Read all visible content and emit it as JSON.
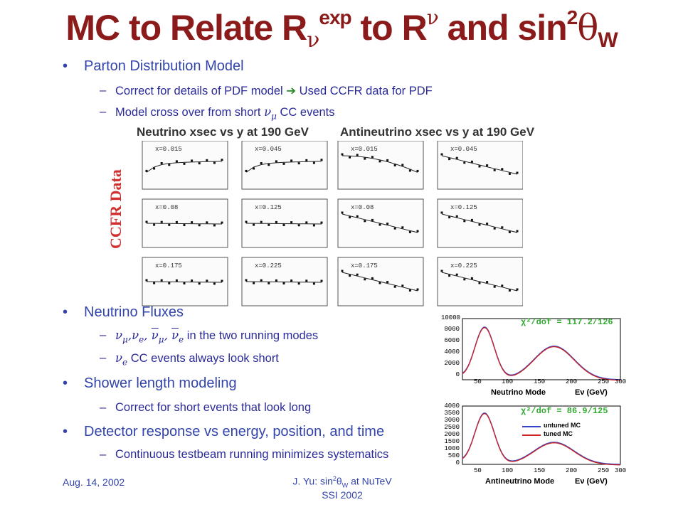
{
  "title": {
    "part1": "MC to Relate R",
    "nu1": "ν",
    "exp": "exp",
    "part2": " to R",
    "nu2": "ν",
    "part3": " and sin",
    "sq": "2",
    "theta": "θ",
    "w": "W"
  },
  "bullets": {
    "pdf": {
      "label": "Parton Distribution Model",
      "sub1": "Correct for details of PDF model ",
      "sub1_arrow": "➔",
      "sub1_tail": " Used CCFR data for PDF",
      "sub2": "Model cross over from short ",
      "sub2_nu": "ν",
      "sub2_mu": "μ",
      "sub2_tail": " CC events"
    },
    "flux": {
      "label": "Neutrino Fluxes",
      "sub1_tail": " in the two running modes",
      "sub2_tail": " CC events always look short"
    },
    "shower": {
      "label": "Shower length modeling",
      "sub1": "Correct for short events that look long"
    },
    "detector": {
      "label": "Detector response vs energy, position, and time",
      "sub1": "Continuous testbeam running minimizes systematics"
    }
  },
  "figure_ccfr": {
    "side_label": "CCFR Data",
    "header_left": "Neutrino xsec vs y at 190 GeV",
    "header_right": "Antineutrino xsec vs y at 190 GeV",
    "panels": [
      {
        "label": "x=0.015"
      },
      {
        "label": "x=0.045"
      },
      {
        "label": "x=0.015"
      },
      {
        "label": "x=0.045"
      },
      {
        "label": "x=0.08"
      },
      {
        "label": "x=0.125"
      },
      {
        "label": "x=0.08"
      },
      {
        "label": "x=0.125"
      },
      {
        "label": "x=0.175"
      },
      {
        "label": "x=0.225"
      },
      {
        "label": "x=0.175"
      },
      {
        "label": "x=0.225"
      }
    ]
  },
  "flux_plots": [
    {
      "chi": "χ²/dof = 117.2/126",
      "mode": "Neutrino Mode",
      "elabel": "Eν (GeV)",
      "yticks": [
        "10000",
        "8000",
        "6000",
        "4000",
        "2000",
        "0"
      ],
      "xticks": [
        "50",
        "100",
        "150",
        "200",
        "250",
        "300"
      ],
      "colors": {
        "untuned": "#3344cc",
        "tuned": "#cc2222"
      }
    },
    {
      "chi": "χ²/dof = 86.9/125",
      "mode": "Antineutrino Mode",
      "elabel": "Eν (GeV)",
      "yticks": [
        "4000",
        "3500",
        "3000",
        "2500",
        "2000",
        "1500",
        "1000",
        "500",
        "0"
      ],
      "xticks": [
        "50",
        "100",
        "150",
        "200",
        "250",
        "300"
      ],
      "legend": [
        "untuned MC",
        "tuned MC"
      ],
      "colors": {
        "untuned": "#3344cc",
        "tuned": "#cc2222"
      }
    }
  ],
  "footer": {
    "date": "Aug. 14, 2002",
    "author_pre": "J. Yu: sin",
    "author_sq": "2",
    "author_theta": "θ",
    "author_w": "W",
    "author_post": " at NuTeV",
    "conf": "SSI 2002"
  }
}
